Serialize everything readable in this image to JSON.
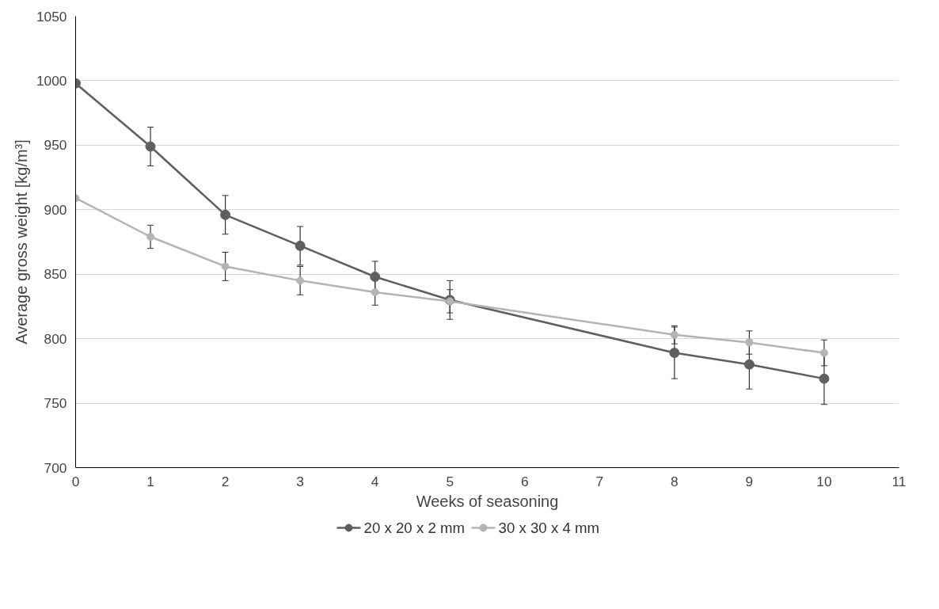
{
  "chart_data": {
    "type": "line",
    "xlabel": "Weeks of seasoning",
    "ylabel": "Average gross weight [kg/m³]",
    "x": [
      0,
      1,
      2,
      3,
      4,
      5,
      8,
      9,
      10
    ],
    "xlim": [
      0,
      11
    ],
    "xticks": [
      0,
      1,
      2,
      3,
      4,
      5,
      6,
      7,
      8,
      9,
      10,
      11
    ],
    "ylim": [
      700,
      1050
    ],
    "yticks": [
      700,
      750,
      800,
      850,
      900,
      950,
      1000,
      1050
    ],
    "grid": "y",
    "legend": "bottom",
    "marker": "circle",
    "line_style": "solid",
    "series": [
      {
        "name": "20 x 20 x 2 mm",
        "color": "#5f5f5f",
        "values": [
          998,
          949,
          896,
          872,
          848,
          830,
          789,
          780,
          769
        ],
        "errors": [
          null,
          15,
          15,
          15,
          12,
          15,
          20,
          19,
          20
        ]
      },
      {
        "name": "30 x 30 x 4 mm",
        "color": "#b4b4b4",
        "values": [
          909,
          879,
          856,
          845,
          836,
          829,
          803,
          797,
          789
        ],
        "errors": [
          null,
          9,
          11,
          11,
          10,
          9,
          7,
          9,
          10
        ]
      }
    ]
  }
}
